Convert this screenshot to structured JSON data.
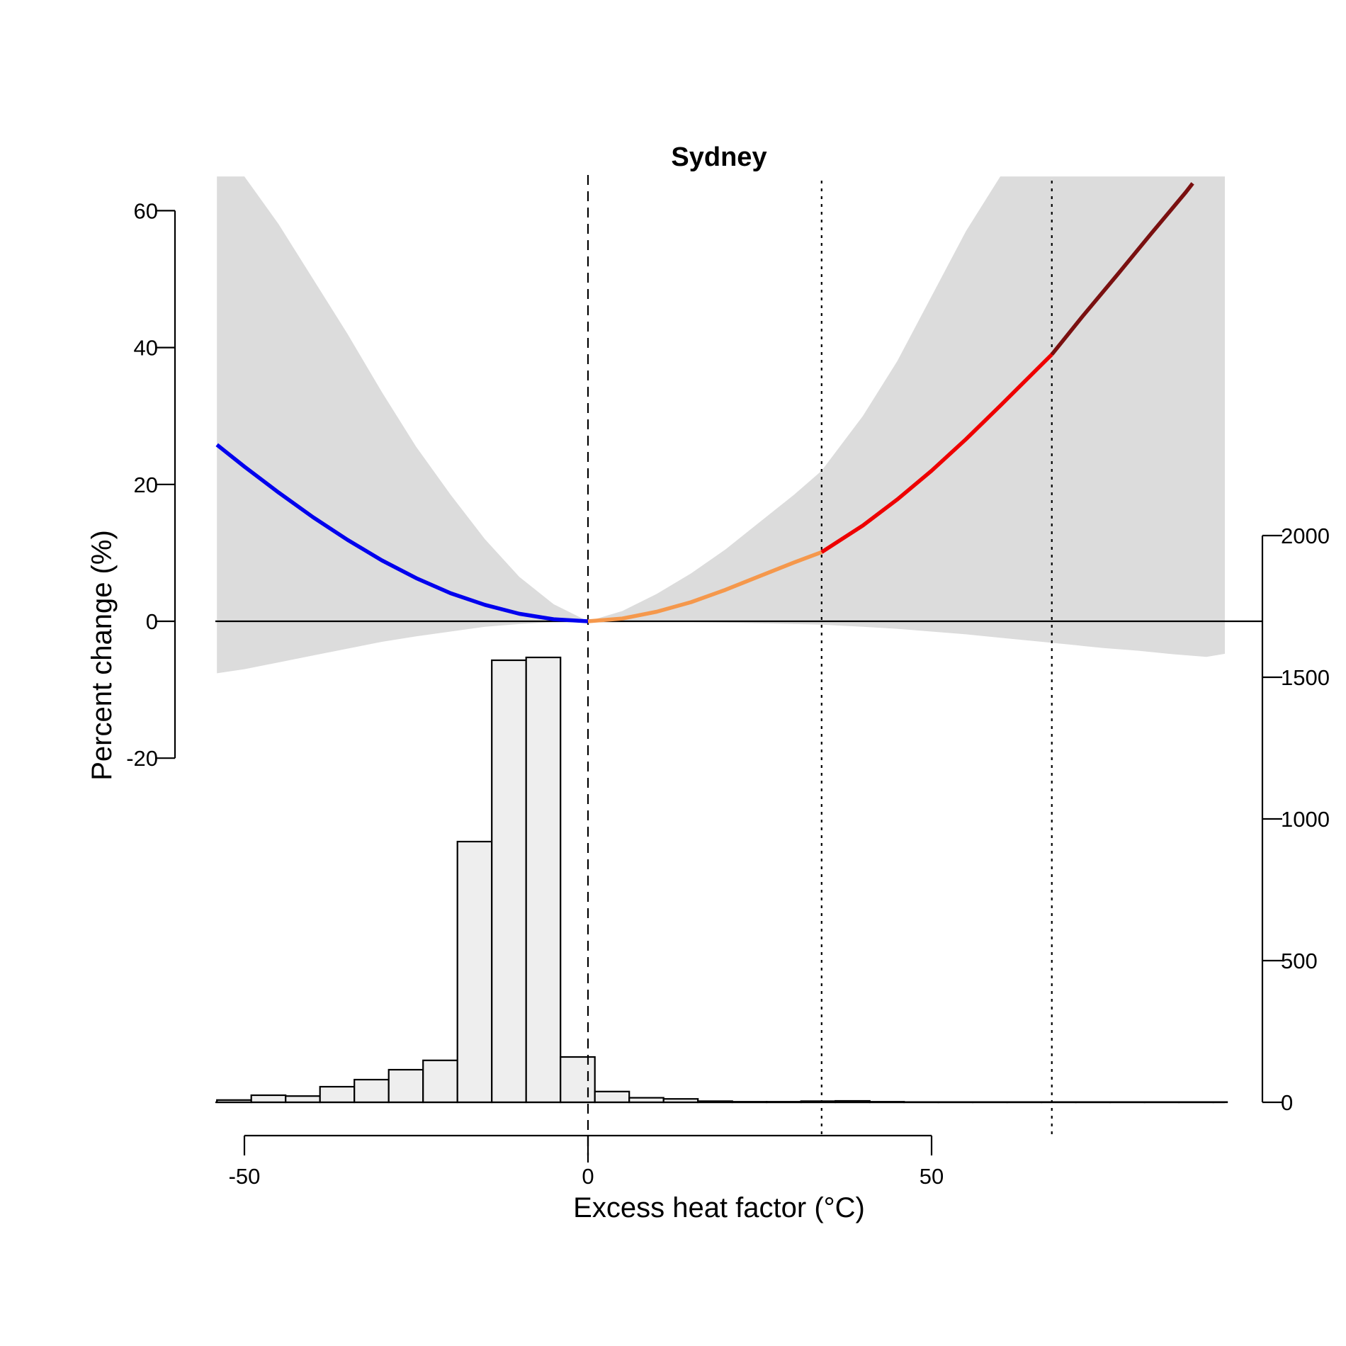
{
  "chart_data": {
    "type": "line",
    "title": "Sydney",
    "xlabel": "Excess heat factor (°C)",
    "ylabel": "Percent change (%)",
    "xlim": [
      -54,
      93
    ],
    "ylim_left": [
      -20,
      60
    ],
    "ylim_right": [
      0,
      2000
    ],
    "x_ticks": [
      "-50",
      "0",
      "50"
    ],
    "y_ticks_left": [
      "60",
      "40",
      "20",
      "0",
      "-20"
    ],
    "y_ticks_right": [
      "2000",
      "1500",
      "1000",
      "500",
      "0"
    ],
    "reference_lines": {
      "dashed_x": 0,
      "dotted_x": [
        34,
        67.5
      ],
      "horizontal_y": 0
    },
    "curve_segments": [
      {
        "color": "#0000ee",
        "x": [
          -54,
          -50,
          -45,
          -40,
          -35,
          -30,
          -25,
          -20,
          -15,
          -10,
          -5,
          0
        ],
        "y": [
          25.8,
          22.6,
          18.8,
          15.2,
          11.9,
          8.9,
          6.3,
          4.1,
          2.4,
          1.1,
          0.3,
          0
        ]
      },
      {
        "color": "#f5984c",
        "x": [
          0,
          5,
          10,
          15,
          20,
          25,
          30,
          34
        ],
        "y": [
          0,
          0.4,
          1.4,
          2.8,
          4.6,
          6.6,
          8.6,
          10.1
        ]
      },
      {
        "color": "#ee0000",
        "x": [
          34,
          40,
          45,
          50,
          55,
          60,
          65,
          67.5
        ],
        "y": [
          10.1,
          14.0,
          17.8,
          22.0,
          26.6,
          31.5,
          36.5,
          39.0
        ]
      },
      {
        "color": "#7a1010",
        "x": [
          67.5,
          72,
          77,
          82,
          87,
          88
        ],
        "y": [
          39.0,
          44.6,
          50.6,
          56.7,
          62.7,
          64.0
        ]
      }
    ],
    "ci_band": {
      "color": "#dcdcdc",
      "x": [
        -54,
        -50,
        -45,
        -40,
        -35,
        -30,
        -25,
        -20,
        -15,
        -10,
        -5,
        0,
        5,
        10,
        15,
        20,
        25,
        30,
        34,
        40,
        45,
        50,
        55,
        60,
        65,
        70,
        75,
        80,
        85,
        90,
        93
      ],
      "upper": [
        65,
        65,
        58,
        50,
        42,
        33.5,
        25.5,
        18.5,
        12.0,
        6.5,
        2.5,
        0,
        1.5,
        4.0,
        7.0,
        10.5,
        14.5,
        18.5,
        22.0,
        30.0,
        38.0,
        47.5,
        57.0,
        65,
        65,
        65,
        65,
        65,
        65,
        65,
        65
      ],
      "lower": [
        -7.6,
        -7.0,
        -6.0,
        -5.0,
        -4.0,
        -3.0,
        -2.2,
        -1.5,
        -0.8,
        -0.4,
        -0.1,
        0,
        0,
        0,
        -0.1,
        -0.2,
        -0.3,
        -0.4,
        -0.5,
        -0.8,
        -1.1,
        -1.5,
        -1.9,
        -2.4,
        -2.9,
        -3.4,
        -3.9,
        -4.3,
        -4.8,
        -5.2,
        -4.7
      ]
    },
    "histogram": {
      "fill": "#eeeeee",
      "bin_edges": [
        -54,
        -49,
        -44,
        -39,
        -34,
        -29,
        -24,
        -19,
        -14,
        -9,
        -4,
        1,
        6,
        11,
        16,
        21,
        26,
        31,
        36,
        41,
        46,
        51,
        56,
        61,
        66,
        71,
        76,
        81,
        86,
        91,
        93
      ],
      "counts": [
        8,
        25,
        22,
        55,
        80,
        115,
        148,
        920,
        1560,
        1570,
        160,
        38,
        16,
        12,
        4,
        2,
        2,
        4,
        5,
        2,
        1,
        1,
        1,
        1,
        1,
        1,
        1,
        1,
        1,
        1
      ]
    }
  }
}
